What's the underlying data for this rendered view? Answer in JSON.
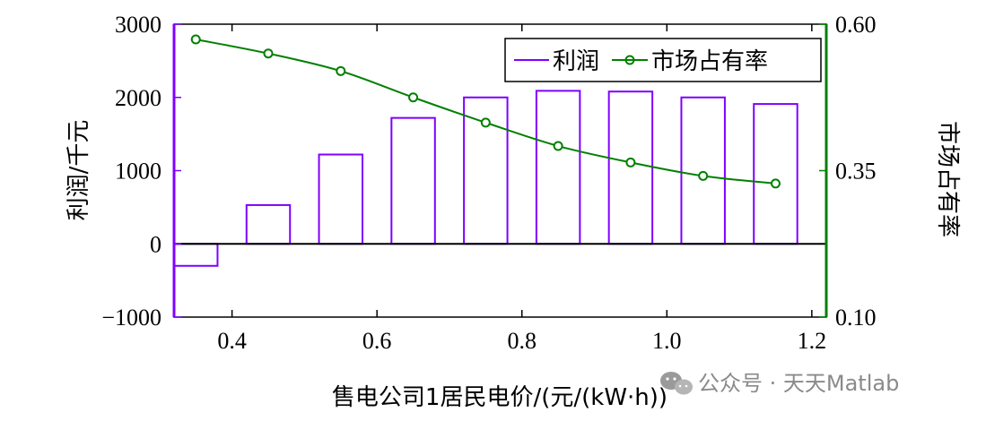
{
  "chart_data": {
    "type": "bar",
    "xlabel": "售电公司1居民电价/(元/(kW·h))",
    "ylabel_left": "利润/千元",
    "ylabel_right": "市场占有率",
    "xlim": [
      0.32,
      1.22
    ],
    "xticks": [
      "0.4",
      "0.6",
      "0.8",
      "1.0",
      "1.2"
    ],
    "ylim_left": [
      -1000,
      3000
    ],
    "yticks_left": [
      "−1000",
      "0",
      "1000",
      "2000",
      "3000"
    ],
    "ylim_right": [
      0.1,
      0.6
    ],
    "yticks_right": [
      "0.10",
      "0.35",
      "0.60"
    ],
    "legend_position": "top-right",
    "series": [
      {
        "name": "利润",
        "kind": "bar",
        "color": "#7f00ff",
        "x": [
          0.35,
          0.45,
          0.55,
          0.65,
          0.75,
          0.85,
          0.95,
          1.05,
          1.15
        ],
        "values": [
          -300,
          530,
          1220,
          1720,
          2000,
          2090,
          2080,
          2000,
          1910
        ]
      },
      {
        "name": "市场占有率",
        "kind": "line",
        "axis": "right",
        "color": "#008000",
        "x": [
          0.35,
          0.45,
          0.55,
          0.65,
          0.75,
          0.85,
          0.95,
          1.05,
          1.15
        ],
        "values": [
          0.574,
          0.55,
          0.52,
          0.475,
          0.432,
          0.392,
          0.364,
          0.341,
          0.328
        ]
      }
    ]
  },
  "watermark": {
    "text": "公众号 · 天天Matlab",
    "icon": "wechat-icon"
  }
}
